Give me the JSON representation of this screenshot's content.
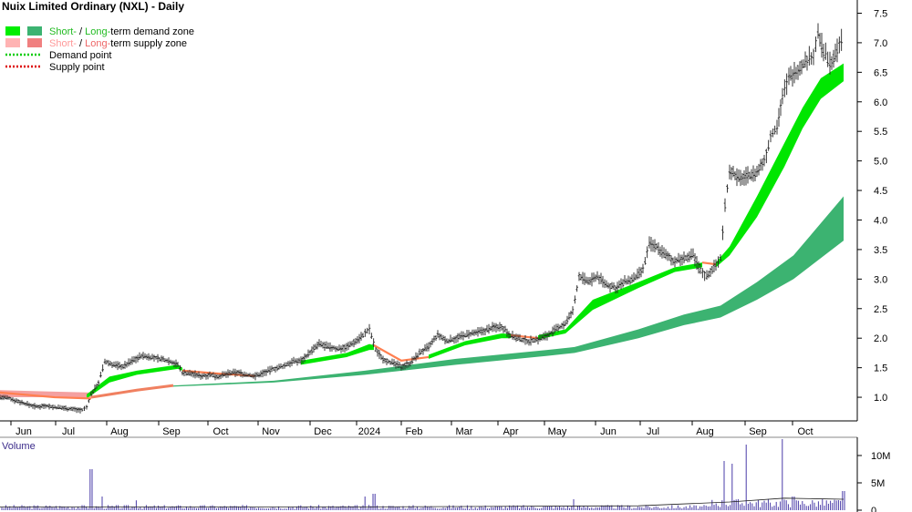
{
  "chart_data": {
    "type": "candlestick",
    "title": "Nuix Limited Ordinary (NXL) - Daily",
    "legend": [
      {
        "label_prefix": "Short-",
        "label_mid": " / ",
        "label_colored": "Long-",
        "label_suffix": "term demand zone",
        "short_color": "#00ee00",
        "long_color": "#3cb371",
        "prefix_color": "#22bb22",
        "colored_color": "#22bb22"
      },
      {
        "label_prefix": "Short-",
        "label_mid": " / ",
        "label_colored": "Long-",
        "label_suffix": "term supply zone",
        "short_color": "#ffb3b3",
        "long_color": "#f08080",
        "prefix_color": "#ff9999",
        "colored_color": "#ee6666"
      },
      {
        "label": "Demand point",
        "color": "#00cc00",
        "style": "dotted"
      },
      {
        "label": "Supply point",
        "color": "#dd0000",
        "style": "dotted"
      }
    ],
    "x_labels": [
      "Jun",
      "Jul",
      "Aug",
      "Sep",
      "Oct",
      "Nov",
      "Dec",
      "2024",
      "Feb",
      "Mar",
      "Apr",
      "May",
      "Jun",
      "Jul",
      "Aug",
      "Sep",
      "Oct"
    ],
    "y_ticks": [
      1.0,
      1.5,
      2.0,
      2.5,
      3.0,
      3.5,
      4.0,
      4.5,
      5.0,
      5.5,
      6.0,
      6.5,
      7.0,
      7.5
    ],
    "ylim": [
      0.6,
      7.6
    ],
    "price_series": [
      [
        0,
        1.0
      ],
      [
        10,
        0.98
      ],
      [
        20,
        0.93
      ],
      [
        30,
        0.88
      ],
      [
        40,
        0.84
      ],
      [
        50,
        0.86
      ],
      [
        60,
        0.83
      ],
      [
        70,
        0.82
      ],
      [
        80,
        0.8
      ],
      [
        90,
        0.78
      ],
      [
        95,
        0.83
      ],
      [
        100,
        1.05
      ],
      [
        108,
        1.25
      ],
      [
        115,
        1.6
      ],
      [
        125,
        1.55
      ],
      [
        135,
        1.52
      ],
      [
        145,
        1.62
      ],
      [
        155,
        1.7
      ],
      [
        165,
        1.68
      ],
      [
        175,
        1.65
      ],
      [
        185,
        1.62
      ],
      [
        195,
        1.55
      ],
      [
        200,
        1.42
      ],
      [
        210,
        1.4
      ],
      [
        220,
        1.36
      ],
      [
        230,
        1.38
      ],
      [
        240,
        1.35
      ],
      [
        250,
        1.4
      ],
      [
        260,
        1.42
      ],
      [
        270,
        1.38
      ],
      [
        280,
        1.36
      ],
      [
        290,
        1.42
      ],
      [
        300,
        1.48
      ],
      [
        310,
        1.52
      ],
      [
        320,
        1.6
      ],
      [
        330,
        1.62
      ],
      [
        340,
        1.76
      ],
      [
        350,
        1.9
      ],
      [
        360,
        1.85
      ],
      [
        370,
        1.82
      ],
      [
        380,
        1.85
      ],
      [
        390,
        1.95
      ],
      [
        398,
        2.05
      ],
      [
        405,
        2.15
      ],
      [
        412,
        1.8
      ],
      [
        420,
        1.65
      ],
      [
        430,
        1.58
      ],
      [
        440,
        1.52
      ],
      [
        450,
        1.58
      ],
      [
        460,
        1.75
      ],
      [
        470,
        1.85
      ],
      [
        480,
        2.05
      ],
      [
        490,
        1.95
      ],
      [
        500,
        2.0
      ],
      [
        510,
        2.05
      ],
      [
        520,
        2.08
      ],
      [
        530,
        2.12
      ],
      [
        540,
        2.18
      ],
      [
        550,
        2.2
      ],
      [
        560,
        2.05
      ],
      [
        570,
        1.98
      ],
      [
        580,
        1.95
      ],
      [
        590,
        1.98
      ],
      [
        600,
        2.05
      ],
      [
        610,
        2.15
      ],
      [
        620,
        2.25
      ],
      [
        628,
        2.45
      ],
      [
        635,
        3.05
      ],
      [
        645,
        2.95
      ],
      [
        655,
        3.05
      ],
      [
        665,
        2.9
      ],
      [
        675,
        2.85
      ],
      [
        685,
        2.95
      ],
      [
        695,
        3.0
      ],
      [
        705,
        3.15
      ],
      [
        712,
        3.6
      ],
      [
        720,
        3.55
      ],
      [
        730,
        3.4
      ],
      [
        740,
        3.3
      ],
      [
        750,
        3.35
      ],
      [
        760,
        3.4
      ],
      [
        768,
        3.15
      ],
      [
        775,
        3.05
      ],
      [
        785,
        3.25
      ],
      [
        790,
        3.35
      ],
      [
        795,
        4.25
      ],
      [
        800,
        4.85
      ],
      [
        810,
        4.7
      ],
      [
        820,
        4.75
      ],
      [
        830,
        4.8
      ],
      [
        838,
        5.0
      ],
      [
        845,
        5.4
      ],
      [
        852,
        5.6
      ],
      [
        858,
        6.1
      ],
      [
        865,
        6.4
      ],
      [
        875,
        6.55
      ],
      [
        885,
        6.7
      ],
      [
        892,
        6.8
      ],
      [
        897,
        7.15
      ],
      [
        903,
        6.85
      ],
      [
        910,
        6.65
      ],
      [
        918,
        6.85
      ],
      [
        925,
        7.15
      ]
    ],
    "short_demand_zone": {
      "upper": [
        [
          95,
          1.05
        ],
        [
          120,
          1.35
        ],
        [
          150,
          1.45
        ],
        [
          195,
          1.55
        ],
        [
          200,
          1.5
        ]
      ],
      "lower": [
        [
          95,
          0.98
        ],
        [
          120,
          1.25
        ],
        [
          150,
          1.38
        ],
        [
          195,
          1.48
        ],
        [
          200,
          1.45
        ]
      ]
    },
    "short_demand_zone_2": {
      "upper": [
        [
          330,
          1.62
        ],
        [
          380,
          1.75
        ],
        [
          405,
          1.9
        ],
        [
          410,
          1.88
        ]
      ],
      "lower": [
        [
          330,
          1.55
        ],
        [
          380,
          1.68
        ],
        [
          405,
          1.8
        ],
        [
          410,
          1.8
        ]
      ]
    },
    "short_demand_zone_3": {
      "upper": [
        [
          470,
          1.72
        ],
        [
          510,
          1.95
        ],
        [
          550,
          2.08
        ],
        [
          560,
          2.07
        ]
      ],
      "lower": [
        [
          470,
          1.65
        ],
        [
          510,
          1.88
        ],
        [
          550,
          2.0
        ],
        [
          560,
          2.0
        ]
      ]
    },
    "short_demand_zone_4": {
      "upper": [
        [
          590,
          2.05
        ],
        [
          620,
          2.15
        ],
        [
          650,
          2.65
        ],
        [
          700,
          2.95
        ],
        [
          740,
          3.2
        ],
        [
          770,
          3.28
        ]
      ],
      "lower": [
        [
          590,
          1.98
        ],
        [
          620,
          2.08
        ],
        [
          650,
          2.48
        ],
        [
          700,
          2.85
        ],
        [
          740,
          3.12
        ],
        [
          770,
          3.2
        ]
      ]
    },
    "short_demand_zone_5": {
      "upper": [
        [
          785,
          3.28
        ],
        [
          800,
          3.55
        ],
        [
          830,
          4.4
        ],
        [
          860,
          5.3
        ],
        [
          880,
          5.9
        ],
        [
          900,
          6.4
        ],
        [
          925,
          6.65
        ]
      ],
      "lower": [
        [
          785,
          3.2
        ],
        [
          800,
          3.4
        ],
        [
          830,
          4.05
        ],
        [
          860,
          4.9
        ],
        [
          880,
          5.55
        ],
        [
          900,
          6.05
        ],
        [
          925,
          6.35
        ]
      ]
    },
    "short_supply_connectors": [
      [
        [
          0,
          1.08
        ],
        [
          60,
          1.0
        ],
        [
          100,
          0.98
        ]
      ],
      [
        [
          200,
          1.45
        ],
        [
          240,
          1.4
        ],
        [
          280,
          1.36
        ]
      ],
      [
        [
          410,
          1.88
        ],
        [
          440,
          1.62
        ],
        [
          470,
          1.68
        ]
      ],
      [
        [
          560,
          2.05
        ],
        [
          590,
          2.0
        ]
      ],
      [
        [
          770,
          3.28
        ],
        [
          785,
          3.25
        ]
      ]
    ],
    "long_supply_zone": {
      "upper": [
        [
          0,
          1.12
        ],
        [
          50,
          1.1
        ],
        [
          100,
          1.08
        ]
      ],
      "lower": [
        [
          0,
          1.0
        ],
        [
          50,
          1.0
        ],
        [
          100,
          1.0
        ]
      ]
    },
    "long_supply_connector": [
      [
        100,
        1.0
      ],
      [
        150,
        1.12
      ],
      [
        190,
        1.2
      ]
    ],
    "long_demand_zone": {
      "upper": [
        [
          190,
          1.2
        ],
        [
          300,
          1.28
        ],
        [
          400,
          1.45
        ],
        [
          500,
          1.65
        ],
        [
          600,
          1.8
        ],
        [
          630,
          1.85
        ],
        [
          700,
          2.15
        ],
        [
          750,
          2.4
        ],
        [
          790,
          2.55
        ],
        [
          830,
          2.95
        ],
        [
          870,
          3.4
        ],
        [
          925,
          4.4
        ]
      ],
      "lower": [
        [
          190,
          1.18
        ],
        [
          300,
          1.25
        ],
        [
          400,
          1.38
        ],
        [
          500,
          1.55
        ],
        [
          600,
          1.7
        ],
        [
          630,
          1.75
        ],
        [
          700,
          2.0
        ],
        [
          750,
          2.22
        ],
        [
          790,
          2.35
        ],
        [
          830,
          2.65
        ],
        [
          870,
          3.0
        ],
        [
          925,
          3.65
        ]
      ]
    },
    "volume": {
      "title": "Volume",
      "y_ticks": [
        "0",
        "5M",
        "10M"
      ],
      "ylim": [
        0,
        12
      ],
      "spikes": [
        [
          100,
          7.5
        ],
        [
          112,
          2.5
        ],
        [
          150,
          1.8
        ],
        [
          400,
          2.5
        ],
        [
          410,
          3.0
        ],
        [
          630,
          2.0
        ],
        [
          795,
          9.0
        ],
        [
          803,
          8.5
        ],
        [
          818,
          12.0
        ],
        [
          858,
          13.0
        ],
        [
          870,
          2.5
        ],
        [
          925,
          3.5
        ]
      ],
      "base_level": 0.6,
      "avg_line": [
        [
          0,
          0.6
        ],
        [
          400,
          0.6
        ],
        [
          700,
          0.8
        ],
        [
          800,
          1.5
        ],
        [
          860,
          2.2
        ],
        [
          925,
          2.0
        ]
      ]
    }
  }
}
